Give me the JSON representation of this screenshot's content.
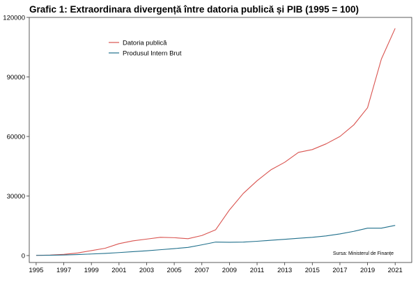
{
  "chart_data": {
    "type": "line",
    "title": "Grafic 1: Extraordinara divergență între datoria publică și PIB (1995 = 100)",
    "xlabel": "",
    "ylabel": "",
    "xlim": [
      1994.5,
      2022.2
    ],
    "ylim": [
      -3500,
      120000
    ],
    "x_ticks": [
      1995,
      1997,
      1999,
      2001,
      2003,
      2005,
      2007,
      2009,
      2011,
      2013,
      2015,
      2017,
      2019,
      2021
    ],
    "y_ticks": [
      0,
      30000,
      60000,
      90000,
      120000
    ],
    "grid": false,
    "legend_position": "top-left",
    "source_note": "Sursa: Ministerul de Finanțe",
    "x": [
      1995,
      1996,
      1997,
      1998,
      1999,
      2000,
      2001,
      2002,
      2003,
      2004,
      2005,
      2006,
      2007,
      2008,
      2009,
      2010,
      2011,
      2012,
      2013,
      2014,
      2015,
      2016,
      2017,
      2018,
      2019,
      2020,
      2021
    ],
    "series": [
      {
        "name": "Datoria publică",
        "color": "#d9534f",
        "values": [
          100,
          250,
          600,
          1300,
          2500,
          3700,
          6000,
          7400,
          8300,
          9200,
          9000,
          8500,
          10100,
          13000,
          23000,
          31300,
          37700,
          43200,
          47000,
          52000,
          53400,
          56300,
          60000,
          65800,
          74500,
          99000,
          114500
        ]
      },
      {
        "name": "Produsul Intern Brut",
        "color": "#1f6f8b",
        "values": [
          100,
          150,
          300,
          500,
          800,
          1100,
          1500,
          1950,
          2400,
          2950,
          3500,
          4100,
          5400,
          6800,
          6700,
          6800,
          7200,
          7700,
          8200,
          8700,
          9200,
          9900,
          10900,
          12200,
          13800,
          13800,
          15200
        ]
      }
    ]
  }
}
